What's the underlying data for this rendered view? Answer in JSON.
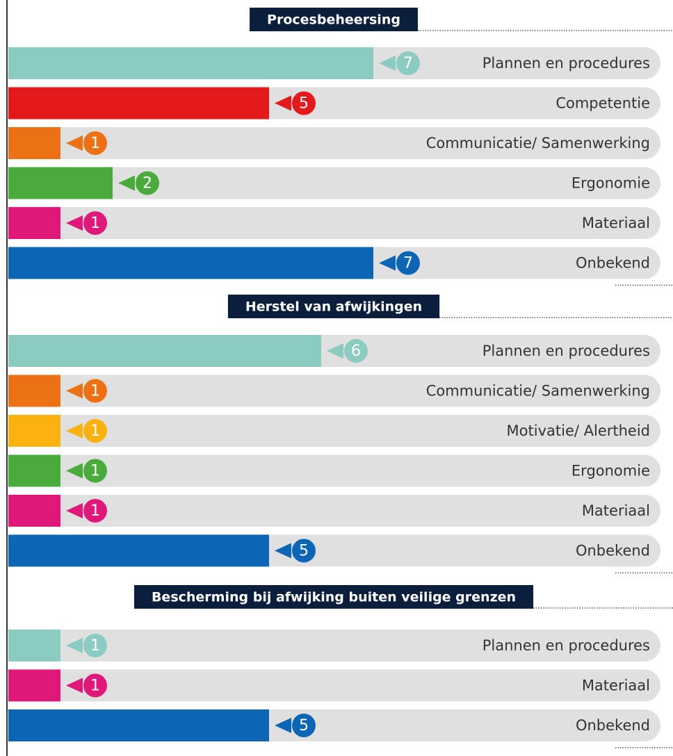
{
  "chart_data": [
    {
      "type": "bar",
      "title": "Procesbeheersing",
      "categories": [
        "Plannen en procedures",
        "Competentie",
        "Communicatie/ Samenwerking",
        "Ergonomie",
        "Materiaal",
        "Onbekend"
      ],
      "values": [
        7,
        5,
        1,
        2,
        1,
        7
      ],
      "colors": [
        "#8ccbc1",
        "#e3191b",
        "#ec7014",
        "#4aab3c",
        "#e0187a",
        "#0d66b5"
      ]
    },
    {
      "type": "bar",
      "title": "Herstel van afwijkingen",
      "categories": [
        "Plannen en procedures",
        "Communicatie/ Samenwerking",
        "Motivatie/ Alertheid",
        "Ergonomie",
        "Materiaal",
        "Onbekend"
      ],
      "values": [
        6,
        1,
        1,
        1,
        1,
        5
      ],
      "colors": [
        "#8ccbc1",
        "#ec7014",
        "#f9b20f",
        "#4aab3c",
        "#e0187a",
        "#0d66b5"
      ]
    },
    {
      "type": "bar",
      "title": "Bescherming bij afwijking buiten veilige grenzen",
      "categories": [
        "Plannen en procedures",
        "Materiaal",
        "Onbekend"
      ],
      "values": [
        1,
        1,
        5
      ],
      "colors": [
        "#8ccbc1",
        "#e0187a",
        "#0d66b5"
      ]
    }
  ]
}
